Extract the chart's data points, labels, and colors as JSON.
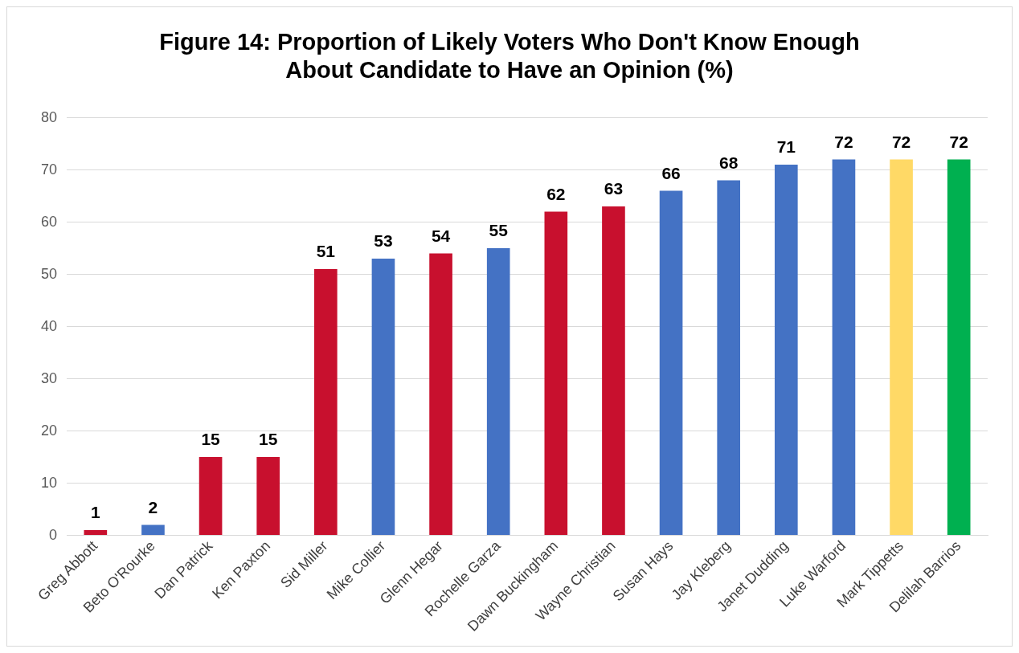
{
  "chart_data": {
    "type": "bar",
    "title": "Figure 14: Proportion of Likely Voters Who Don't Know Enough\nAbout Candidate to Have an Opinion (%)",
    "categories": [
      "Greg Abbott",
      "Beto O'Rourke",
      "Dan Patrick",
      "Ken Paxton",
      "Sid Miller",
      "Mike Collier",
      "Glenn Hegar",
      "Rochelle Garza",
      "Dawn Buckingham",
      "Wayne Christian",
      "Susan Hays",
      "Jay Kleberg",
      "Janet Dudding",
      "Luke Warford",
      "Mark Tippetts",
      "Delilah Barrios"
    ],
    "values": [
      1,
      2,
      15,
      15,
      51,
      53,
      54,
      55,
      62,
      63,
      66,
      68,
      71,
      72,
      72,
      72
    ],
    "colors": [
      "#c8102e",
      "#4472c4",
      "#c8102e",
      "#c8102e",
      "#c8102e",
      "#4472c4",
      "#c8102e",
      "#4472c4",
      "#c8102e",
      "#c8102e",
      "#4472c4",
      "#4472c4",
      "#4472c4",
      "#4472c4",
      "#ffd966",
      "#00b050"
    ],
    "ylim": [
      0,
      80
    ],
    "yticks": [
      0,
      10,
      20,
      30,
      40,
      50,
      60,
      70,
      80
    ],
    "grid": "y",
    "data_labels": true,
    "legend": false
  }
}
